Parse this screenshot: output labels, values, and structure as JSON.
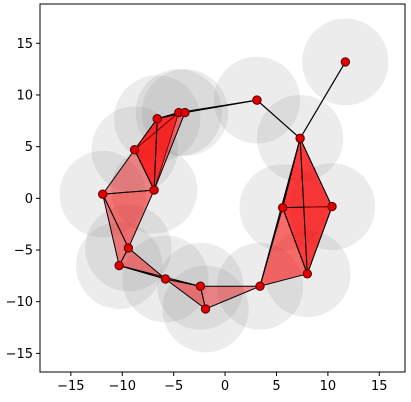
{
  "chart_data": {
    "type": "scatter",
    "title": "",
    "xlabel": "",
    "ylabel": "",
    "xlim": [
      -18,
      17.5
    ],
    "ylim": [
      -16.8,
      18.8
    ],
    "xticks": [
      -15,
      -10,
      -5,
      0,
      5,
      10,
      15
    ],
    "yticks": [
      -15,
      -10,
      -5,
      0,
      5,
      10,
      15
    ],
    "grid": false,
    "circle_radius": 4.2,
    "colors": {
      "point": "#e00000",
      "point_edge": "#550000",
      "circle": "#808080",
      "edge": "#000000",
      "triangle": "#ff0000"
    },
    "points": [
      {
        "x": 11.7,
        "y": 13.2
      },
      {
        "x": 3.1,
        "y": 9.5
      },
      {
        "x": -4.5,
        "y": 8.3
      },
      {
        "x": -3.9,
        "y": 8.3
      },
      {
        "x": -6.6,
        "y": 7.7
      },
      {
        "x": -8.8,
        "y": 4.7
      },
      {
        "x": -6.9,
        "y": 0.8
      },
      {
        "x": -11.9,
        "y": 0.4
      },
      {
        "x": -9.4,
        "y": -4.8
      },
      {
        "x": -10.3,
        "y": -6.5
      },
      {
        "x": -5.8,
        "y": -7.8
      },
      {
        "x": -2.4,
        "y": -8.5
      },
      {
        "x": -1.9,
        "y": -10.7
      },
      {
        "x": 3.4,
        "y": -8.5
      },
      {
        "x": 7.3,
        "y": 5.8
      },
      {
        "x": 5.6,
        "y": -0.9
      },
      {
        "x": 10.4,
        "y": -0.8
      },
      {
        "x": 8.0,
        "y": -7.3
      }
    ],
    "edges": [
      [
        0,
        14
      ],
      [
        14,
        1
      ],
      [
        1,
        2
      ],
      [
        1,
        3
      ],
      [
        2,
        3
      ],
      [
        13,
        14
      ]
    ],
    "triangles": [
      {
        "v": [
          2,
          3,
          4
        ],
        "alpha": 0.55
      },
      {
        "v": [
          2,
          4,
          5
        ],
        "alpha": 0.55
      },
      {
        "v": [
          2,
          5,
          6
        ],
        "alpha": 0.6
      },
      {
        "v": [
          3,
          4,
          6
        ],
        "alpha": 0.5
      },
      {
        "v": [
          4,
          5,
          6
        ],
        "alpha": 0.55
      },
      {
        "v": [
          5,
          6,
          7
        ],
        "alpha": 0.4
      },
      {
        "v": [
          6,
          7,
          8
        ],
        "alpha": 0.5
      },
      {
        "v": [
          7,
          8,
          9
        ],
        "alpha": 0.45
      },
      {
        "v": [
          8,
          9,
          10
        ],
        "alpha": 0.45
      },
      {
        "v": [
          9,
          10,
          11
        ],
        "alpha": 0.45
      },
      {
        "v": [
          10,
          11,
          12
        ],
        "alpha": 0.45
      },
      {
        "v": [
          11,
          12,
          13
        ],
        "alpha": 0.4
      },
      {
        "v": [
          13,
          15,
          17
        ],
        "alpha": 0.55
      },
      {
        "v": [
          14,
          15,
          16
        ],
        "alpha": 0.55
      },
      {
        "v": [
          14,
          15,
          17
        ],
        "alpha": 0.45
      },
      {
        "v": [
          15,
          16,
          17
        ],
        "alpha": 0.55
      },
      {
        "v": [
          14,
          16,
          17
        ],
        "alpha": 0.45
      }
    ]
  }
}
